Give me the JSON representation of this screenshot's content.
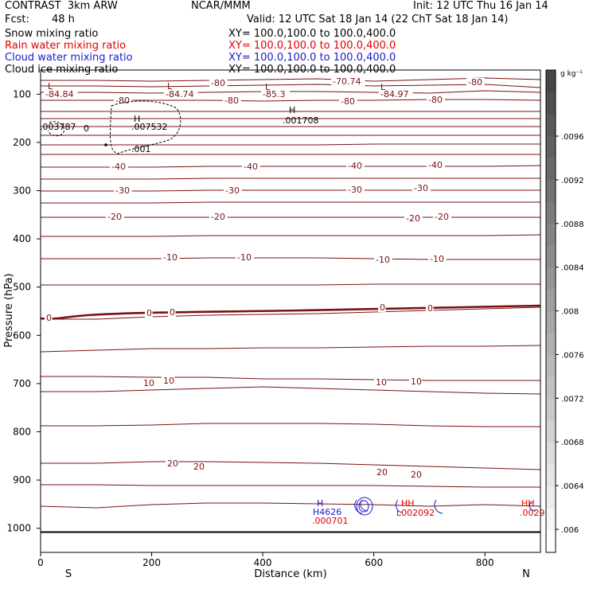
{
  "header": {
    "model": "CONTRAST  3km ARW",
    "org": "NCAR/MMM",
    "init": "Init: 12 UTC Thu 16 Jan 14",
    "fcst_label": "Fcst:",
    "fcst_value": "48 h",
    "valid": "Valid: 12 UTC Sat 18 Jan 14 (22 ChT Sat 18 Jan 14)"
  },
  "fields": [
    {
      "name": "Snow mixing ratio",
      "xy": "XY= 100.0,100.0 to 100.0,400.0",
      "color": "#000000"
    },
    {
      "name": "Rain water mixing ratio",
      "xy": "XY= 100.0,100.0 to 100.0,400.0",
      "color": "#e00000"
    },
    {
      "name": "Cloud water mixing ratio",
      "xy": "XY= 100.0,100.0 to 100.0,400.0",
      "color": "#1a1acc"
    },
    {
      "name": "Cloud ice mixing ratio",
      "xy": "XY= 100.0,100.0 to 100.0,400.0",
      "color": "#000000"
    }
  ],
  "chart_data": {
    "type": "contour",
    "x_axis": {
      "label": "Distance (km)",
      "range": [
        0,
        900
      ],
      "ticks": [
        0,
        200,
        400,
        600,
        800
      ],
      "left_label": "S",
      "right_label": "N"
    },
    "y_axis": {
      "label": "Pressure (hPa)",
      "range": [
        1050,
        50
      ],
      "ticks": [
        100,
        200,
        300,
        400,
        500,
        600,
        700,
        800,
        900,
        1000
      ]
    },
    "colorbar": {
      "unit": "g kg⁻¹",
      "ticks": [
        ".0096",
        ".0092",
        ".0088",
        ".0084",
        ".008",
        ".0076",
        ".0072",
        ".0068",
        ".0064",
        ".006"
      ]
    },
    "temperature_labels": [
      "-84.84",
      "-84.74",
      "-85.3",
      "-70.74",
      "-84.97",
      "-80",
      "-40",
      "-30",
      "-20",
      "-10",
      "0",
      "10",
      "20"
    ],
    "snow_labels": [
      ".003787",
      "0",
      ".007532",
      ".001",
      ".001708"
    ],
    "cloud_labels": [
      "H",
      "H4626",
      ".000701",
      "HH",
      "L002092",
      "HH",
      ".0029"
    ],
    "lows": [
      "L",
      "L",
      "L",
      "L"
    ],
    "highs": [
      "H",
      "H"
    ],
    "surface_pressure_hpa": 1008
  }
}
